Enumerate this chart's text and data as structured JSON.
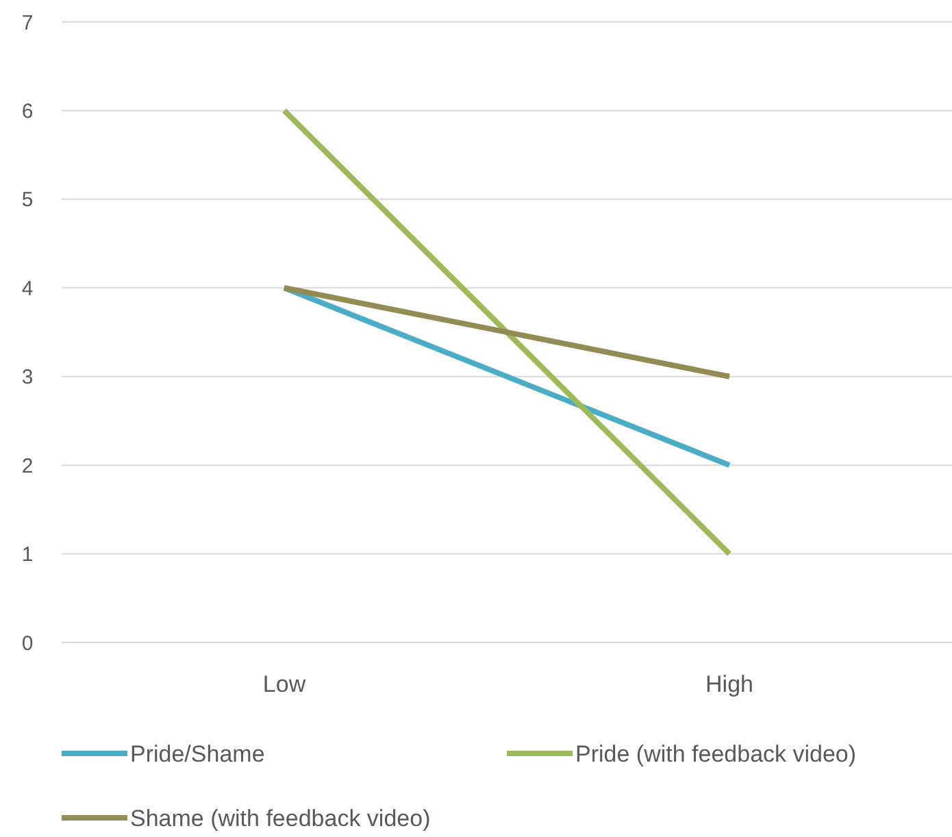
{
  "chart_data": {
    "type": "line",
    "categories": [
      "Low",
      "High"
    ],
    "series": [
      {
        "name": "Pride/Shame",
        "color": "#4bacc6",
        "values": [
          4,
          2
        ]
      },
      {
        "name": "Pride (with feedback video)",
        "color": "#9bbb59",
        "values": [
          6,
          1
        ]
      },
      {
        "name": "Shame (with feedback video)",
        "color": "#948a54",
        "values": [
          4,
          3
        ]
      }
    ],
    "ylim": [
      0,
      7
    ],
    "yticks": [
      0,
      1,
      2,
      3,
      4,
      5,
      6,
      7
    ],
    "grid": "y",
    "legend": "bottom",
    "marker": "none",
    "line_style": "solid"
  }
}
